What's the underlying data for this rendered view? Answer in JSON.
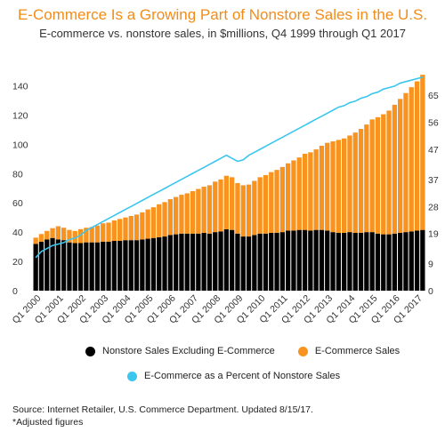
{
  "title": "E-Commerce Is a Growing Part of Nonstore Sales in the U.S.",
  "subtitle": "E-commerce vs. nonstore sales, in $millions, Q4 1999 through Q1 2017",
  "source": "Source: Internet Retailer, U.S. Commerce Department. Updated 8/15/17.",
  "note": "*Adjusted figures",
  "chart_data": {
    "type": "bar",
    "stacked": true,
    "x": [
      "Q4 1999",
      "Q1 2000",
      "Q2 2000",
      "Q3 2000",
      "Q4 2000",
      "Q1 2001",
      "Q2 2001",
      "Q3 2001",
      "Q4 2001",
      "Q1 2002",
      "Q2 2002",
      "Q3 2002",
      "Q4 2002",
      "Q1 2003",
      "Q2 2003",
      "Q3 2003",
      "Q4 2003",
      "Q1 2004",
      "Q2 2004",
      "Q3 2004",
      "Q4 2004",
      "Q1 2005",
      "Q2 2005",
      "Q3 2005",
      "Q4 2005",
      "Q1 2006",
      "Q2 2006",
      "Q3 2006",
      "Q4 2006",
      "Q1 2007",
      "Q2 2007",
      "Q3 2007",
      "Q4 2007",
      "Q1 2008",
      "Q2 2008",
      "Q3 2008",
      "Q4 2008",
      "Q1 2009",
      "Q2 2009",
      "Q3 2009",
      "Q4 2009",
      "Q1 2010",
      "Q2 2010",
      "Q3 2010",
      "Q4 2010",
      "Q1 2011",
      "Q2 2011",
      "Q3 2011",
      "Q4 2011",
      "Q1 2012",
      "Q2 2012",
      "Q3 2012",
      "Q4 2012",
      "Q1 2013",
      "Q2 2013",
      "Q3 2013",
      "Q4 2013",
      "Q1 2014",
      "Q2 2014",
      "Q3 2014",
      "Q4 2014",
      "Q1 2015",
      "Q2 2015",
      "Q3 2015",
      "Q4 2015",
      "Q1 2016",
      "Q2 2016",
      "Q3 2016",
      "Q4 2016",
      "Q1 2017"
    ],
    "xtick_labels": [
      "Q1 2000",
      "Q1 2001",
      "Q1 2002",
      "Q1 2003",
      "Q1 2004",
      "Q1 2005",
      "Q1 2006",
      "Q1 2007",
      "Q1 2008",
      "Q1 2009",
      "Q1 2010",
      "Q1 2011",
      "Q1 2012",
      "Q1 2013",
      "Q1 2014",
      "Q1 2015",
      "Q1 2016",
      "Q1 2017"
    ],
    "series": [
      {
        "name": "Nonstore Sales Excluding E-Commerce",
        "color": "#000000",
        "axis": "left",
        "values": [
          32,
          33.5,
          35,
          36,
          35,
          34.5,
          33,
          32.5,
          32.5,
          33,
          33,
          33,
          33.5,
          33.5,
          34,
          34,
          34.5,
          34.5,
          34.5,
          35,
          35.5,
          36,
          36.5,
          37,
          38,
          38.5,
          39,
          39,
          39,
          39,
          39.5,
          39,
          40,
          40.5,
          42,
          41.5,
          39,
          37,
          37,
          38,
          39,
          39,
          39.5,
          39.5,
          40,
          41,
          41,
          41.5,
          41.5,
          41,
          41.5,
          41.5,
          41,
          40,
          39.5,
          39.5,
          40,
          39.5,
          39.5,
          40,
          40,
          39,
          38.5,
          38.5,
          39,
          39.5,
          40,
          40.5,
          41,
          41.5
        ]
      },
      {
        "name": "E-Commerce Sales",
        "color": "#f7931e",
        "axis": "left",
        "values": [
          4.2,
          5.2,
          5.8,
          6.7,
          9,
          8.5,
          8.5,
          8.3,
          9.5,
          10,
          10.5,
          11.5,
          12.5,
          13,
          14,
          15,
          15.5,
          16.5,
          17.5,
          18.5,
          20,
          21,
          22.5,
          23.5,
          24.5,
          25.5,
          26.5,
          27.5,
          29,
          30.5,
          31.5,
          33,
          34.5,
          35.5,
          36.5,
          36,
          34.5,
          35,
          35.5,
          37,
          38.5,
          40,
          41.5,
          43,
          44.5,
          46,
          48,
          49.5,
          52,
          53.5,
          55,
          57.5,
          60,
          62,
          63.5,
          64.5,
          66,
          68.5,
          71,
          73.5,
          77,
          79.5,
          82,
          84.5,
          88,
          91.5,
          95,
          98.5,
          102,
          106
        ]
      },
      {
        "name": "E-Commerce as a Percent of Nonstore Sales",
        "type": "line",
        "color": "#3bc6ee",
        "axis": "right",
        "values": [
          11,
          13,
          14,
          15,
          15.5,
          16,
          17,
          17.5,
          18.5,
          20,
          21,
          22,
          23,
          24,
          25,
          26,
          27,
          28,
          29,
          30,
          31,
          32,
          33,
          34,
          35,
          36,
          37,
          38,
          39,
          40,
          41,
          42,
          43,
          44,
          45,
          44,
          43,
          43.5,
          45,
          46,
          47,
          48,
          49,
          50,
          51,
          52,
          53,
          54,
          55,
          56,
          57,
          58,
          59,
          60,
          61,
          61.5,
          62.5,
          63,
          64,
          64.5,
          65.5,
          66,
          67,
          67.5,
          68,
          69,
          69.5,
          70,
          70.5,
          71
        ]
      }
    ],
    "ylim": [
      0,
      150
    ],
    "yticks": [
      0,
      20,
      40,
      60,
      80,
      100,
      120,
      140
    ],
    "y2lim": [
      0,
      73
    ],
    "y2ticks": [
      0,
      9,
      19,
      28,
      37,
      47,
      56,
      65
    ],
    "grid": false,
    "legend": "bottom"
  }
}
